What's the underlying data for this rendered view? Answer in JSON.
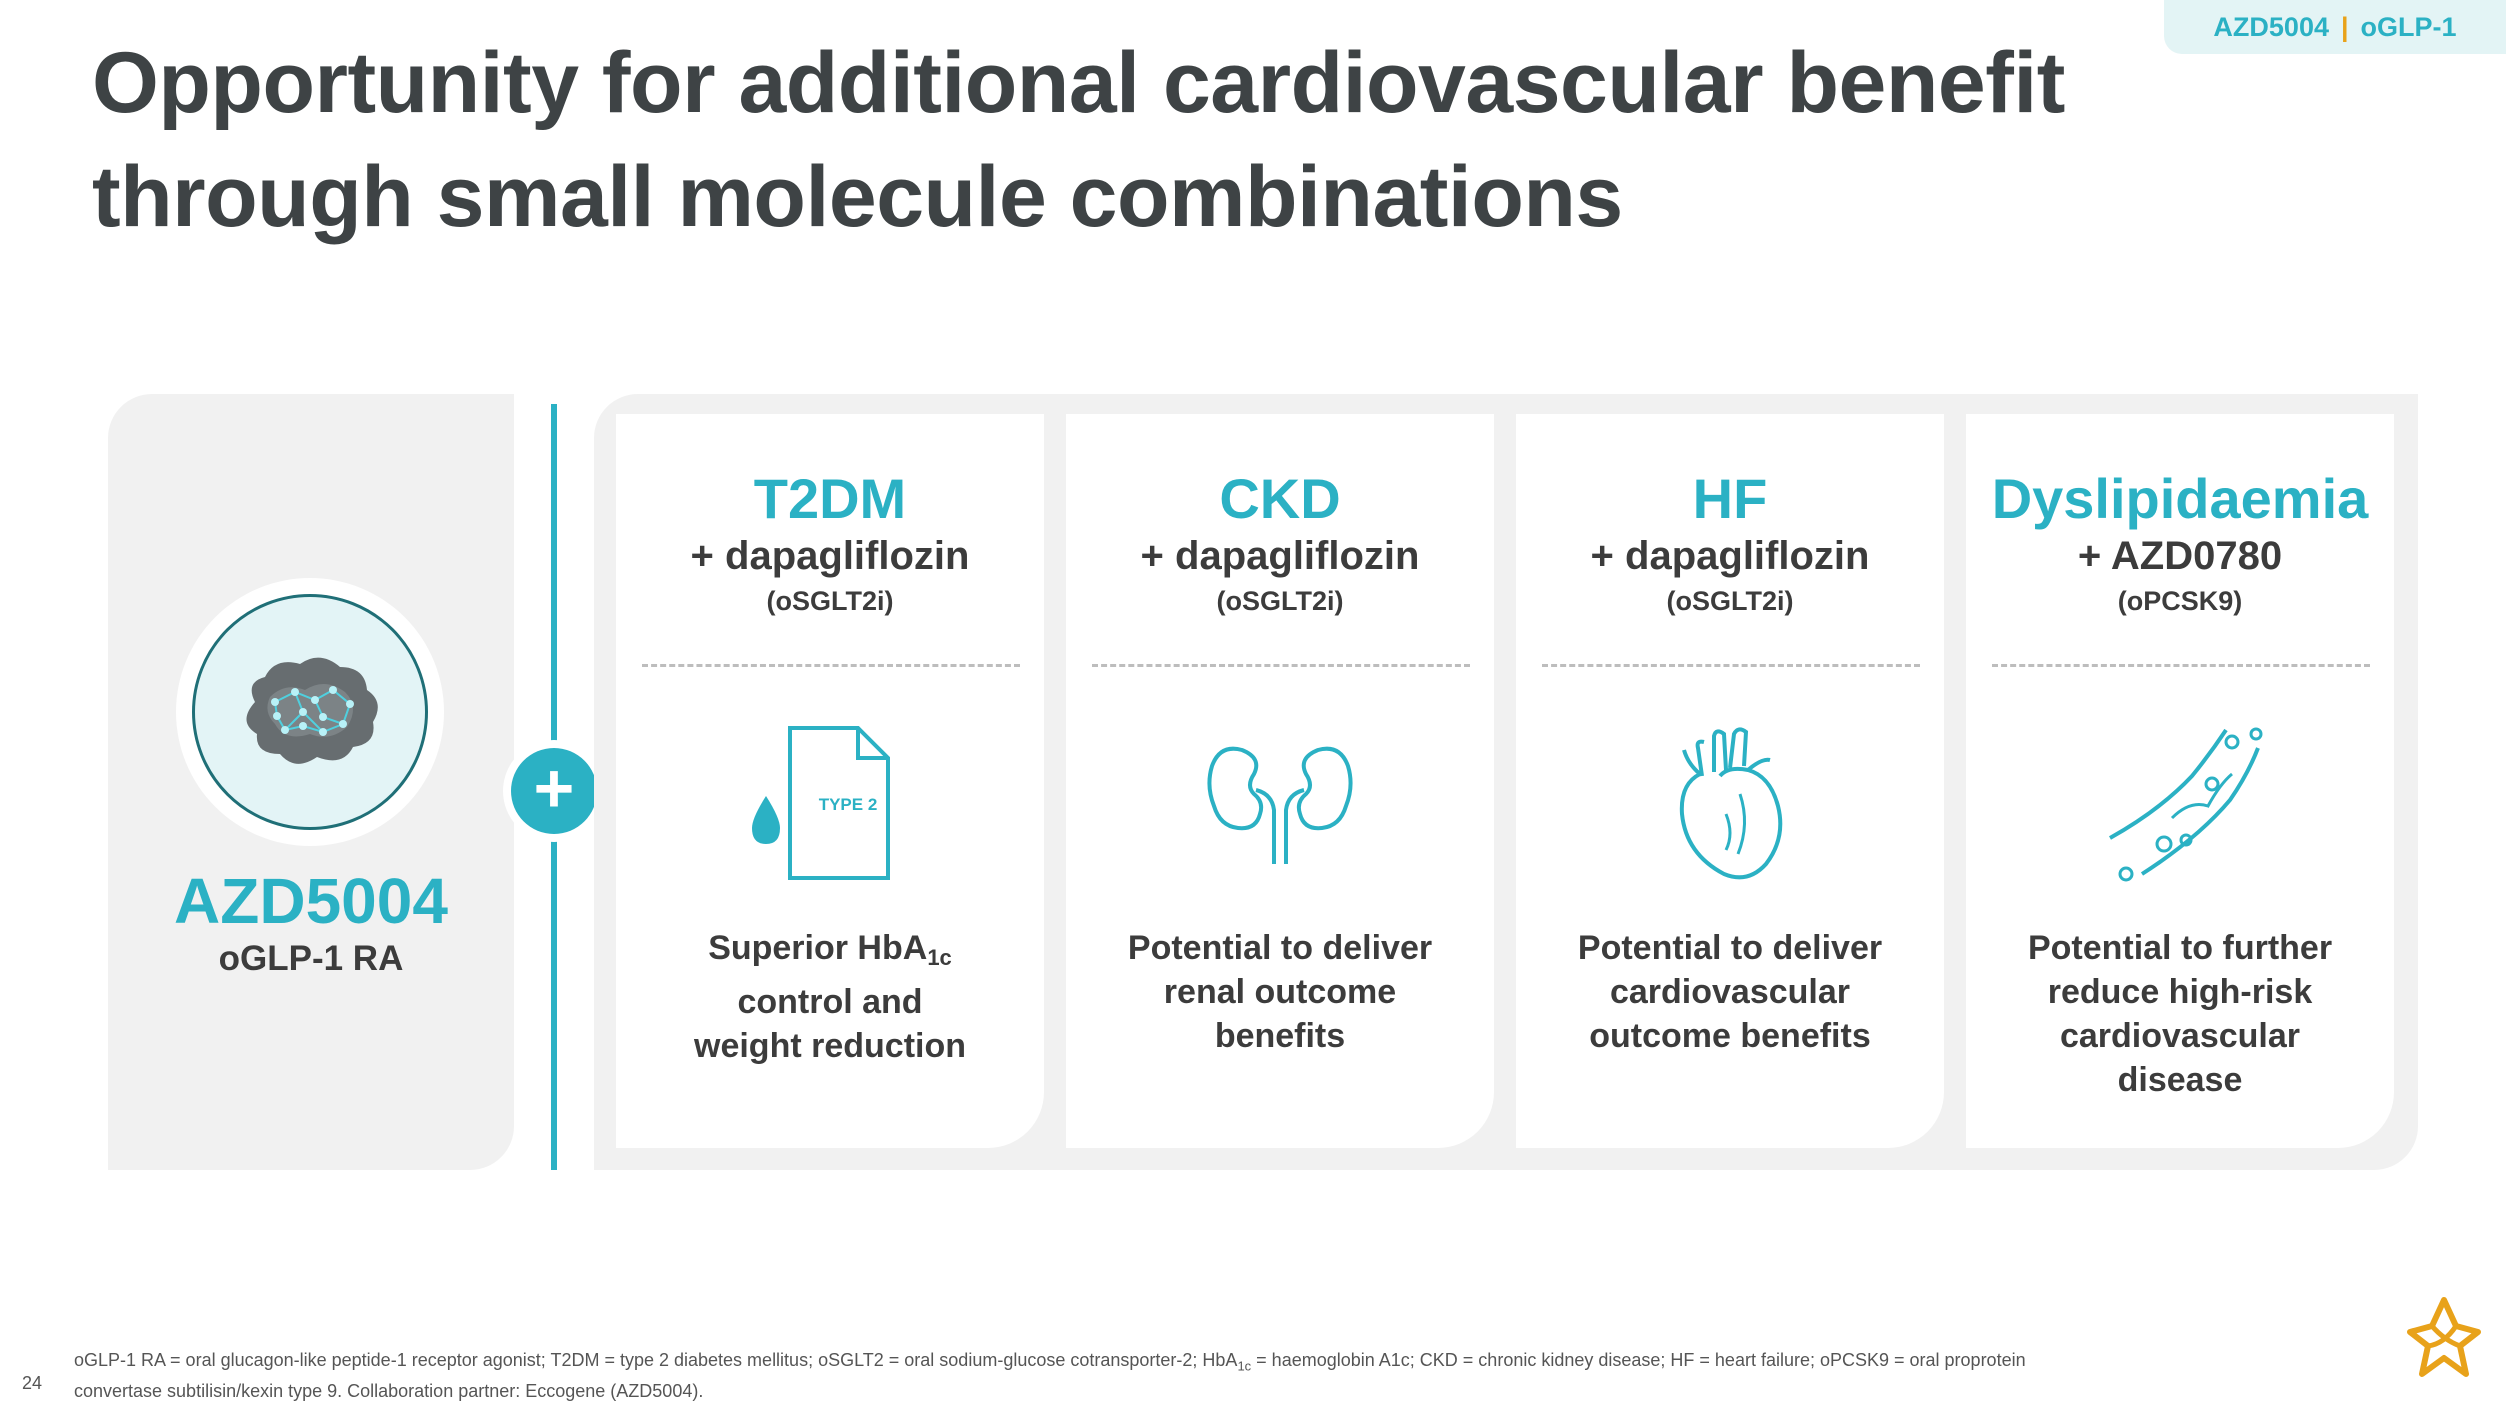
{
  "tag": {
    "left": "AZD5004",
    "sep": "|",
    "right": "oGLP-1"
  },
  "title": {
    "line1": "Opportunity for additional cardiovascular benefit",
    "line2": "through small molecule combinations"
  },
  "left_panel": {
    "name": "AZD5004",
    "sub": "oGLP-1 RA"
  },
  "plus": "+",
  "cards": [
    {
      "heading": "T2DM",
      "combo": "+ dapagliflozin",
      "class": "(oSGLT2i)",
      "icon": "type2-document-icon",
      "icon_text": "TYPE 2",
      "body_pre": "Superior HbA",
      "body_sub": "1c",
      "body_line2": "control and",
      "body_line3": "weight reduction"
    },
    {
      "heading": "CKD",
      "combo": "+ dapagliflozin",
      "class": "(oSGLT2i)",
      "icon": "kidneys-icon",
      "body_line1": "Potential to deliver",
      "body_line2": "renal outcome",
      "body_line3": "benefits"
    },
    {
      "heading": "HF",
      "combo": "+ dapagliflozin",
      "class": "(oSGLT2i)",
      "icon": "heart-icon",
      "body_line1": "Potential to deliver",
      "body_line2": "cardiovascular",
      "body_line3": "outcome benefits"
    },
    {
      "heading": "Dyslipidaemia",
      "combo": "+ AZD0780",
      "class": "(oPCSK9)",
      "icon": "artery-icon",
      "body_line1": "Potential to further",
      "body_line2": "reduce high-risk",
      "body_line3": "cardiovascular",
      "body_line4": "disease"
    }
  ],
  "footnote": {
    "part1": "oGLP-1 RA = oral glucagon-like peptide-1 receptor agonist; T2DM = type 2 diabetes mellitus; oSGLT2 = oral sodium-glucose cotransporter-2; HbA",
    "sub": "1c",
    "part2": " = haemoglobin A1c; CKD = chronic kidney disease; HF = heart failure; oPCSK9 = oral proprotein",
    "line2": "convertase subtilisin/kexin type 9. Collaboration partner: Eccogene (AZD5004)."
  },
  "page_number": "24",
  "colors": {
    "accent": "#2bb1c4",
    "title": "#3e4345",
    "panel": "#f1f1f1",
    "gold": "#e8a21a"
  }
}
